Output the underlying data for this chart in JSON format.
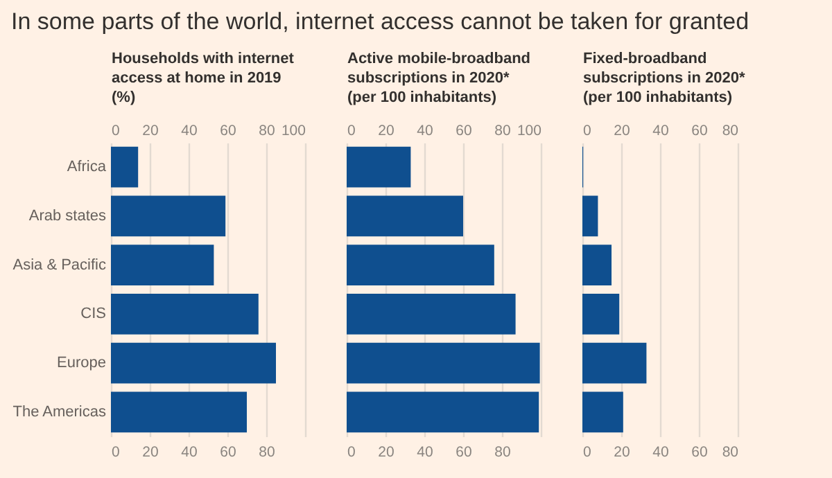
{
  "chart_data": [
    {
      "type": "bar",
      "orientation": "horizontal",
      "title": "In some parts of the world, internet access cannot be taken for granted",
      "x2label": "Households with internet\naccess at home in 2019\n(%)",
      "categories": [
        "Africa",
        "Arab states",
        "Asia & Pacific",
        "CIS",
        "Europe",
        "The Americas"
      ],
      "values": [
        14,
        59,
        53,
        76,
        85,
        70
      ],
      "color": "#0f4f8f",
      "xlim": [
        0,
        100
      ],
      "xticks": [
        0,
        20,
        40,
        60,
        80
      ],
      "x2lim": [
        0,
        100
      ],
      "x2ticks": [
        0,
        20,
        40,
        60,
        80,
        100
      ],
      "grid": "x"
    },
    {
      "type": "bar",
      "orientation": "horizontal",
      "x2label": "Active mobile-broadband\nsubscriptions in 2020*\n(per 100 inhabitants)",
      "categories": [
        null,
        null,
        null,
        null,
        null,
        null
      ],
      "values": [
        33,
        60,
        76,
        87,
        99.5,
        99
      ],
      "color": "#0f4f8f",
      "xlim": [
        0,
        100
      ],
      "xticks": [
        0,
        20,
        40,
        60,
        80
      ],
      "x2lim": [
        0,
        100
      ],
      "x2ticks": [
        0,
        20,
        40,
        60,
        80,
        100
      ],
      "grid": "x",
      "tick_labels": "x"
    },
    {
      "type": "bar",
      "orientation": "horizontal",
      "x2label": "Fixed-broadband\nsubscriptions in 2020*\n(per 100 inhabitants)",
      "categories": [
        null,
        null,
        null,
        null,
        null,
        null
      ],
      "values": [
        0.4,
        8,
        15,
        19,
        33,
        21
      ],
      "color": "#0f4f8f",
      "xlim": [
        0,
        80
      ],
      "xticks": [
        0,
        20,
        40,
        60,
        80
      ],
      "x2lim": [
        0,
        80
      ],
      "x2ticks": [
        0,
        20,
        40,
        60,
        80
      ],
      "grid": "x",
      "tick_labels": "x"
    }
  ]
}
